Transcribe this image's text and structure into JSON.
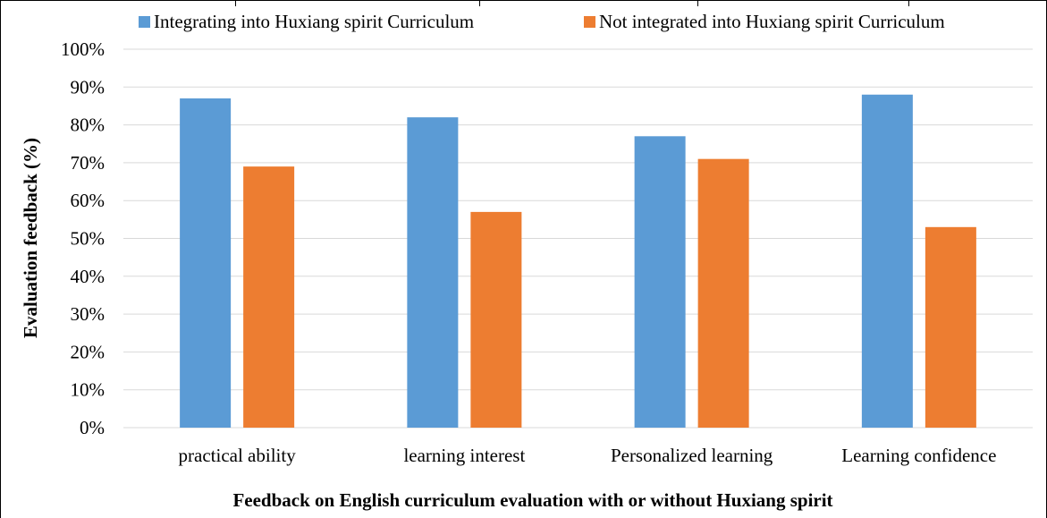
{
  "chart_data": {
    "type": "bar",
    "title": "",
    "xlabel": "Feedback on English curriculum evaluation with or without Huxiang spirit",
    "ylabel": "Evaluation feedback (%)",
    "categories": [
      "practical ability",
      "learning interest",
      "Personalized learning",
      "Learning confidence"
    ],
    "series": [
      {
        "name": "Integrating into Huxiang spirit Curriculum",
        "color": "#5b9bd5",
        "values": [
          87,
          82,
          77,
          88
        ]
      },
      {
        "name": "Not integrated into Huxiang spirit Curriculum",
        "color": "#ed7d31",
        "values": [
          69,
          57,
          71,
          53
        ]
      }
    ],
    "ylim": [
      0,
      100
    ],
    "yticks": [
      "0%",
      "10%",
      "20%",
      "30%",
      "40%",
      "50%",
      "60%",
      "70%",
      "80%",
      "90%",
      "100%"
    ],
    "grid": true,
    "legend_position": "top"
  }
}
